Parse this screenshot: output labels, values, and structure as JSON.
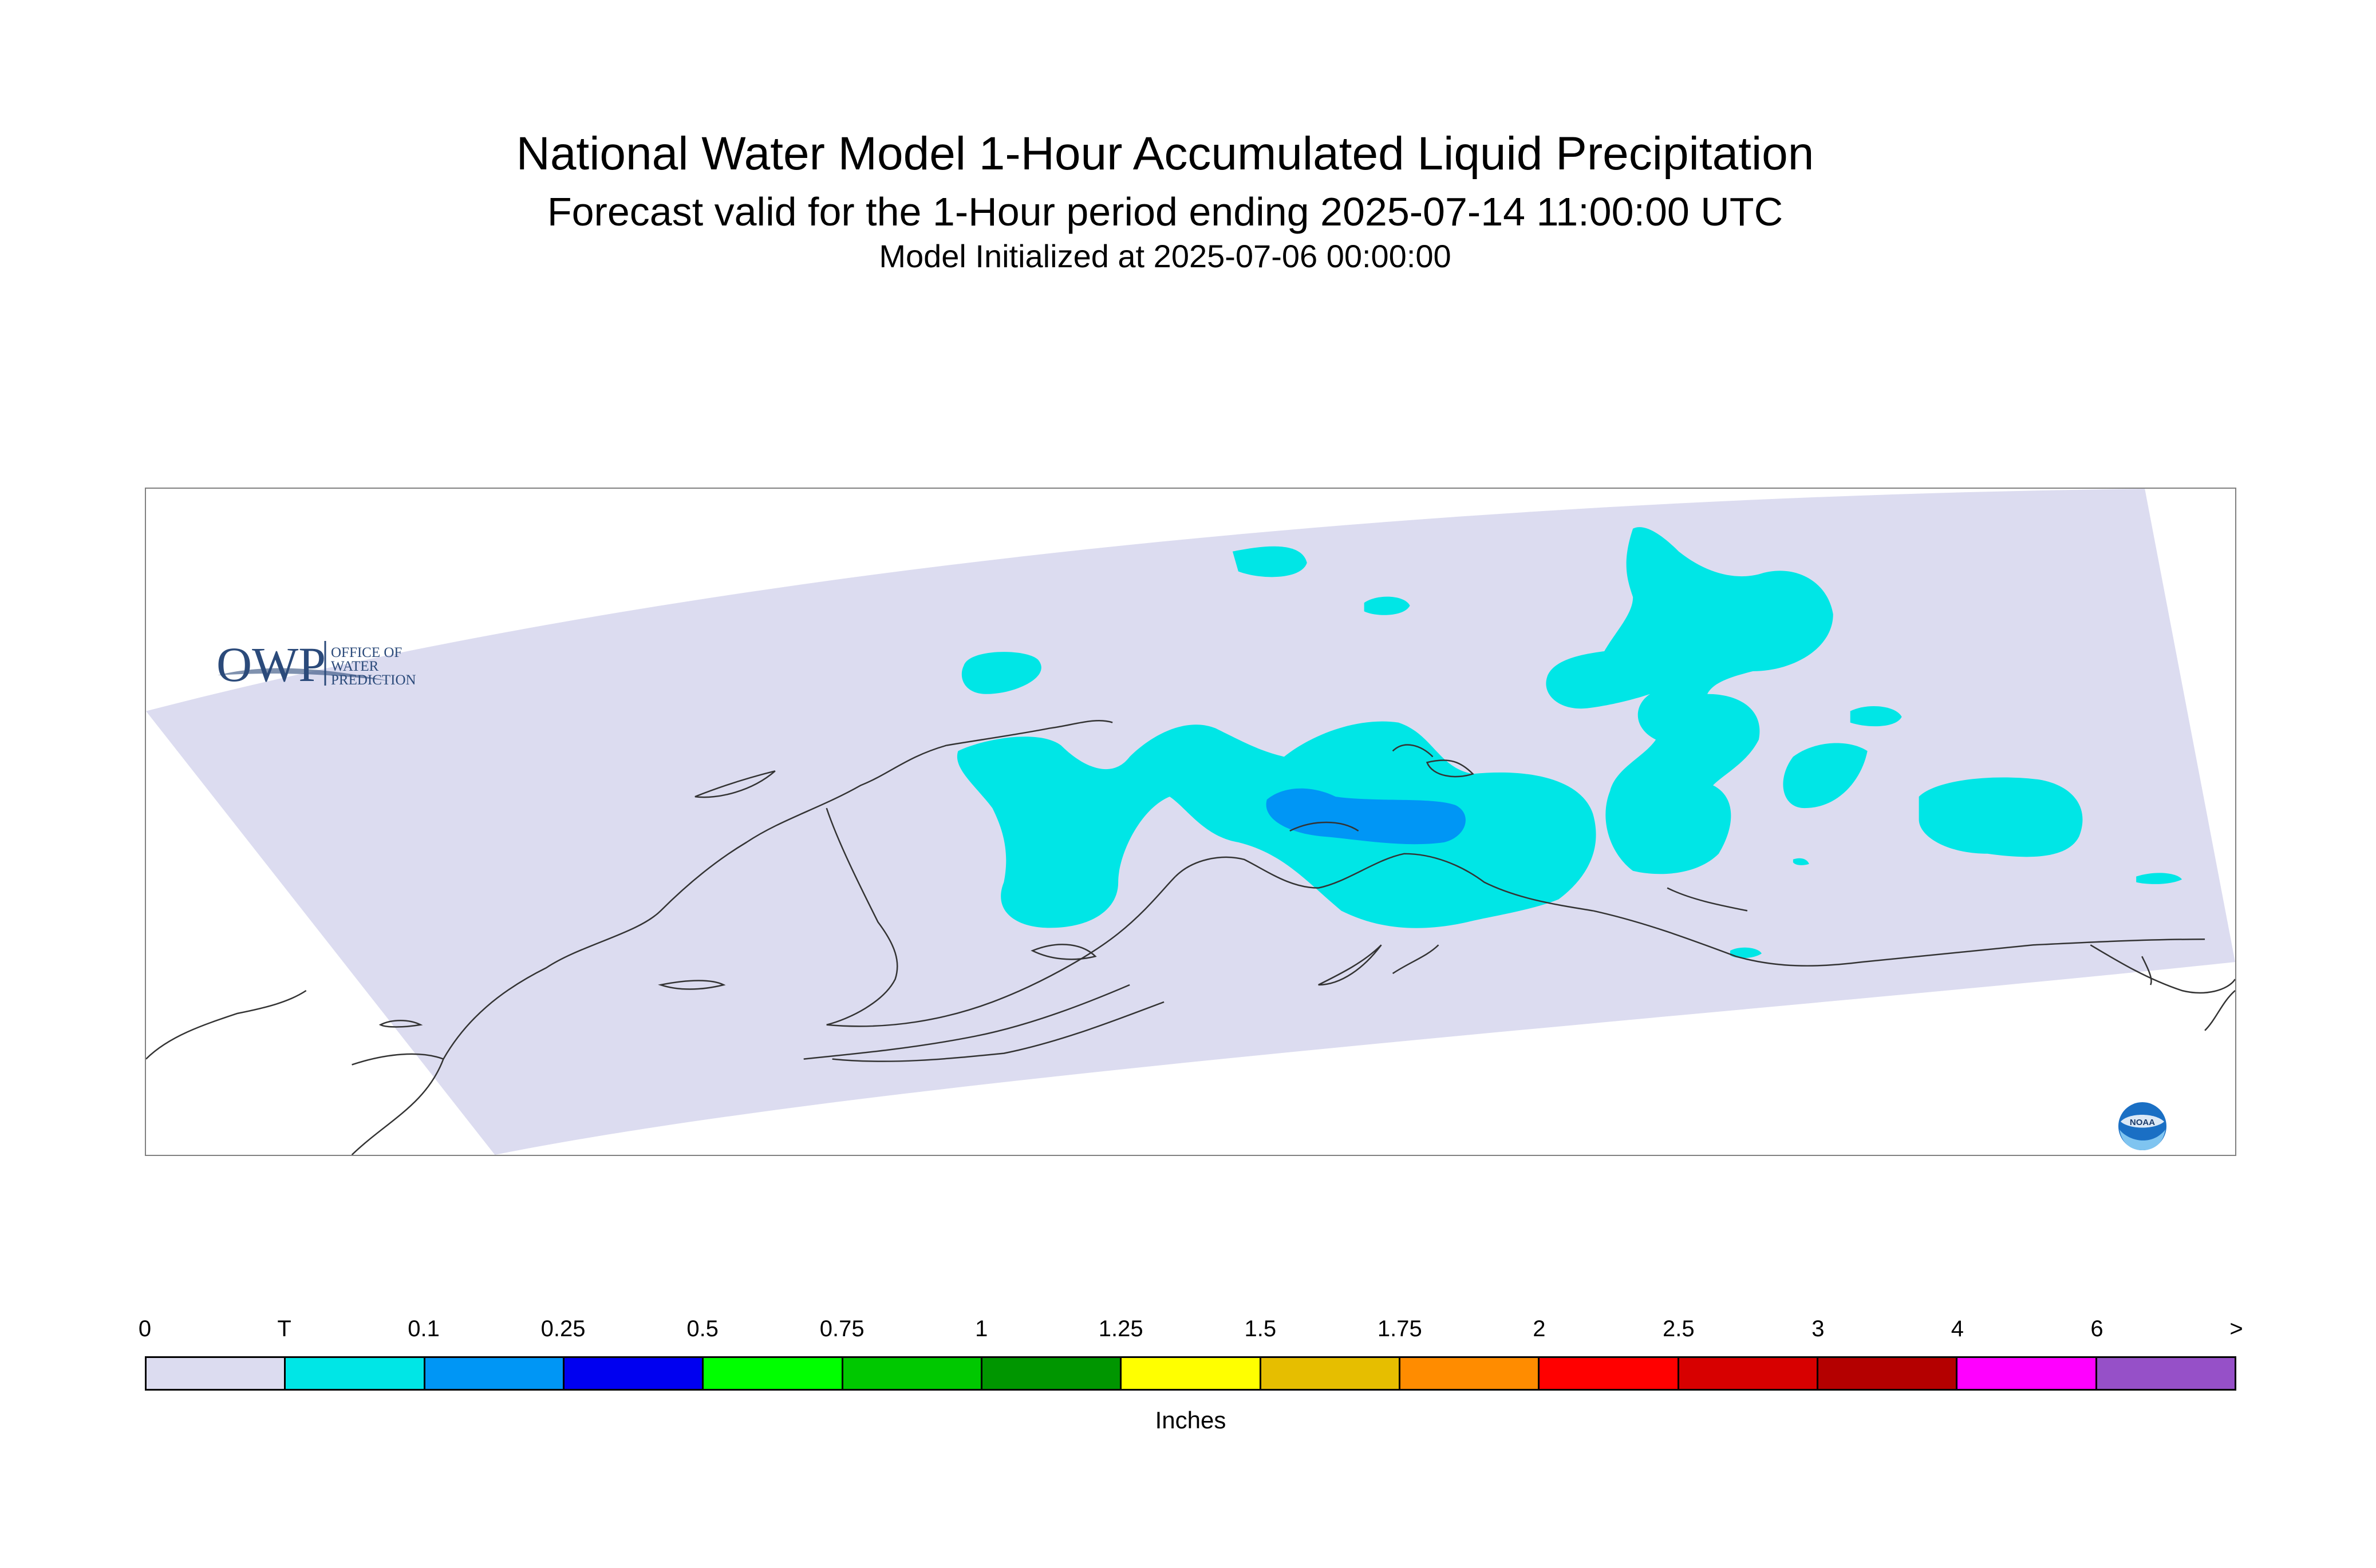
{
  "title": "National Water Model 1-Hour Accumulated Liquid Precipitation",
  "subtitle": "Forecast valid for the 1-Hour period ending 2025-07-14 11:00:00 UTC",
  "init_line": "Model Initialized at 2025-07-06 00:00:00",
  "logo_owp": {
    "mark": "OWP",
    "line1": "OFFICE OF",
    "line2": "WATER",
    "line3": "PREDICTION"
  },
  "logo_noaa": {
    "mark": "NOAA"
  },
  "legend": {
    "units": "Inches",
    "labels": [
      "0",
      "T",
      "0.1",
      "0.25",
      "0.5",
      "0.75",
      "1",
      "1.25",
      "1.5",
      "1.75",
      "2",
      "2.5",
      "3",
      "4",
      "6",
      ">"
    ],
    "colors": [
      "#dcdcf0",
      "#00e6e6",
      "#0096f5",
      "#0000f0",
      "#00ff00",
      "#00c800",
      "#009600",
      "#ffff00",
      "#e6be00",
      "#ff8c00",
      "#ff0000",
      "#d70000",
      "#b40000",
      "#ff00ff",
      "#9650c8"
    ]
  },
  "map": {
    "domain_color": "#dcdcf0",
    "trace_color": "#00e6e6",
    "light_color": "#0096f5",
    "coast_color": "#333333"
  }
}
